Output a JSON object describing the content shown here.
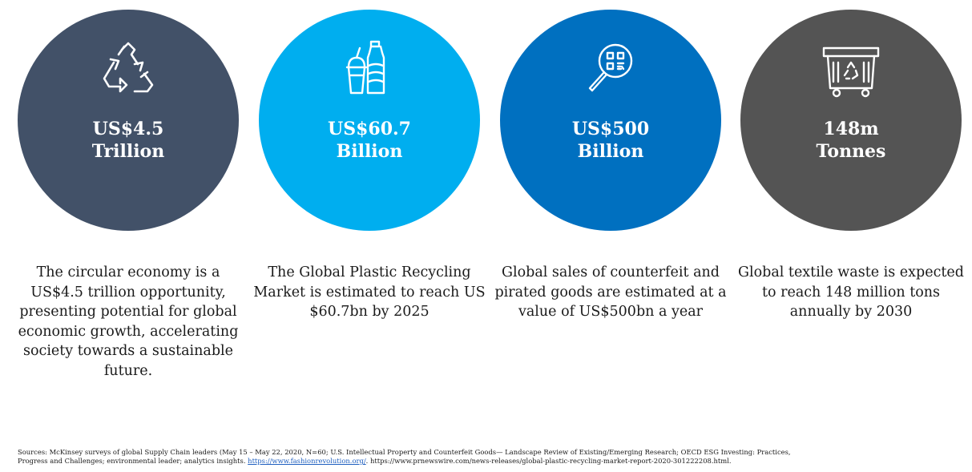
{
  "stats": [
    {
      "icon": "recycle-icon",
      "color": "#425168",
      "value_line1": "US$4.5",
      "value_line2": "Trillion",
      "description": "The circular economy is a US$4.5 trillion opportunity, presenting potential for global economic growth, accelerating society towards a sustainable future."
    },
    {
      "icon": "plastic-bottle-cup-icon",
      "color": "#00AEEF",
      "value_line1": "US$60.7",
      "value_line2": "Billion",
      "description": "The Global Plastic Recycling Market is estimated to reach US $60.7bn by 2025"
    },
    {
      "icon": "magnifier-qr-icon",
      "color": "#0070C0",
      "value_line1": "US$500",
      "value_line2": "Billion",
      "description": "Global sales of counterfeit and pirated goods are estimated at a value of US$500bn a year"
    },
    {
      "icon": "recycling-bin-icon",
      "color": "#545454",
      "value_line1": "148m",
      "value_line2": "Tonnes",
      "description": "Global textile waste is expected to reach 148 million tons annually by 2030"
    }
  ],
  "sources": {
    "prefix": "Sources: McKinsey surveys of global Supply Chain leaders (May 15  – May 22, 2020, N=60; U.S. Intellectual Property and Counterfeit Goods— Landscape Review of Existing/Emerging Research; OECD ESG Investing: Practices, Progress and Challenges; environmental leader; analytics insights. ",
    "link_text": "https://www.fashionrevolution.org/",
    "suffix": ". https://www.prnewswire.com/news-releases/global-plastic-recycling-market-report-2020-301222208.html."
  }
}
